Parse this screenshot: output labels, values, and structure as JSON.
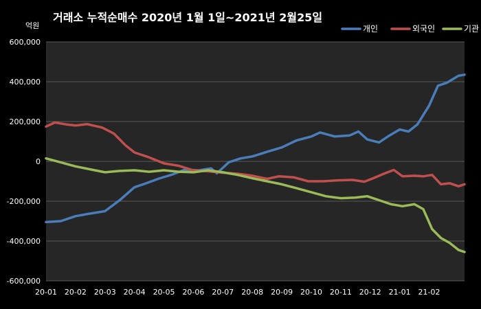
{
  "chart_data": {
    "type": "line",
    "title": "거래소  누적순매수 2020년 1월 1일~2021년 2월25일",
    "unit_label": "억원",
    "ylim": [
      -600000,
      600000
    ],
    "yticks": [
      600000,
      400000,
      200000,
      0,
      -200000,
      -400000,
      -600000
    ],
    "ytick_labels": [
      "600,000",
      "400,000",
      "200,000",
      "0",
      "-200,000",
      "-400,000",
      "-600,000"
    ],
    "xlim": [
      0,
      14.2
    ],
    "xtick_labels": [
      "20-01",
      "20-02",
      "20-03",
      "20-04",
      "20-05",
      "20-06",
      "20-07",
      "20-08",
      "20-09",
      "20-10",
      "20-11",
      "20-12",
      "21-01",
      "21-02"
    ],
    "grid": true,
    "legend_position": "top-right",
    "series": [
      {
        "name": "개인",
        "color": "#4a7ebb",
        "points": [
          [
            0,
            -305000
          ],
          [
            0.5,
            -300000
          ],
          [
            1,
            -275000
          ],
          [
            1.5,
            -262000
          ],
          [
            2,
            -250000
          ],
          [
            2.5,
            -195000
          ],
          [
            3,
            -130000
          ],
          [
            3.4,
            -110000
          ],
          [
            3.8,
            -88000
          ],
          [
            4.3,
            -65000
          ],
          [
            4.7,
            -42000
          ],
          [
            5.2,
            -45000
          ],
          [
            5.6,
            -35000
          ],
          [
            5.8,
            -60000
          ],
          [
            6.2,
            -5000
          ],
          [
            6.6,
            15000
          ],
          [
            7,
            25000
          ],
          [
            7.5,
            48000
          ],
          [
            8,
            70000
          ],
          [
            8.5,
            105000
          ],
          [
            9,
            125000
          ],
          [
            9.3,
            145000
          ],
          [
            9.8,
            125000
          ],
          [
            10.3,
            130000
          ],
          [
            10.6,
            150000
          ],
          [
            10.9,
            110000
          ],
          [
            11.3,
            95000
          ],
          [
            11.6,
            125000
          ],
          [
            12,
            160000
          ],
          [
            12.3,
            150000
          ],
          [
            12.6,
            185000
          ],
          [
            13,
            280000
          ],
          [
            13.3,
            380000
          ],
          [
            13.6,
            395000
          ],
          [
            14,
            430000
          ],
          [
            14.2,
            435000
          ]
        ]
      },
      {
        "name": "외국인",
        "color": "#c0504d",
        "points": [
          [
            0,
            175000
          ],
          [
            0.3,
            195000
          ],
          [
            0.7,
            185000
          ],
          [
            1,
            180000
          ],
          [
            1.4,
            187000
          ],
          [
            1.9,
            170000
          ],
          [
            2.3,
            140000
          ],
          [
            2.7,
            80000
          ],
          [
            3,
            45000
          ],
          [
            3.5,
            20000
          ],
          [
            4,
            -10000
          ],
          [
            4.5,
            -22000
          ],
          [
            5,
            -45000
          ],
          [
            5.5,
            -50000
          ],
          [
            6,
            -57000
          ],
          [
            6.5,
            -62000
          ],
          [
            7,
            -72000
          ],
          [
            7.5,
            -88000
          ],
          [
            7.9,
            -75000
          ],
          [
            8.4,
            -80000
          ],
          [
            8.9,
            -100000
          ],
          [
            9.4,
            -100000
          ],
          [
            9.9,
            -95000
          ],
          [
            10.4,
            -93000
          ],
          [
            10.8,
            -102000
          ],
          [
            11.1,
            -85000
          ],
          [
            11.5,
            -60000
          ],
          [
            11.8,
            -43000
          ],
          [
            12.1,
            -75000
          ],
          [
            12.5,
            -72000
          ],
          [
            12.8,
            -75000
          ],
          [
            13.1,
            -68000
          ],
          [
            13.4,
            -115000
          ],
          [
            13.7,
            -110000
          ],
          [
            14,
            -125000
          ],
          [
            14.2,
            -115000
          ]
        ]
      },
      {
        "name": "기관",
        "color": "#9bbb59",
        "points": [
          [
            0,
            15000
          ],
          [
            0.5,
            -5000
          ],
          [
            1,
            -25000
          ],
          [
            1.5,
            -40000
          ],
          [
            2,
            -55000
          ],
          [
            2.5,
            -48000
          ],
          [
            3,
            -45000
          ],
          [
            3.5,
            -52000
          ],
          [
            4,
            -45000
          ],
          [
            4.5,
            -52000
          ],
          [
            5,
            -55000
          ],
          [
            5.5,
            -45000
          ],
          [
            6,
            -55000
          ],
          [
            6.5,
            -68000
          ],
          [
            7,
            -85000
          ],
          [
            7.5,
            -100000
          ],
          [
            8,
            -115000
          ],
          [
            8.5,
            -135000
          ],
          [
            9,
            -155000
          ],
          [
            9.5,
            -175000
          ],
          [
            10,
            -185000
          ],
          [
            10.5,
            -182000
          ],
          [
            10.9,
            -175000
          ],
          [
            11.3,
            -195000
          ],
          [
            11.7,
            -215000
          ],
          [
            12.1,
            -225000
          ],
          [
            12.5,
            -215000
          ],
          [
            12.8,
            -240000
          ],
          [
            13.1,
            -340000
          ],
          [
            13.4,
            -385000
          ],
          [
            13.7,
            -410000
          ],
          [
            14,
            -445000
          ],
          [
            14.2,
            -455000
          ]
        ]
      }
    ]
  }
}
